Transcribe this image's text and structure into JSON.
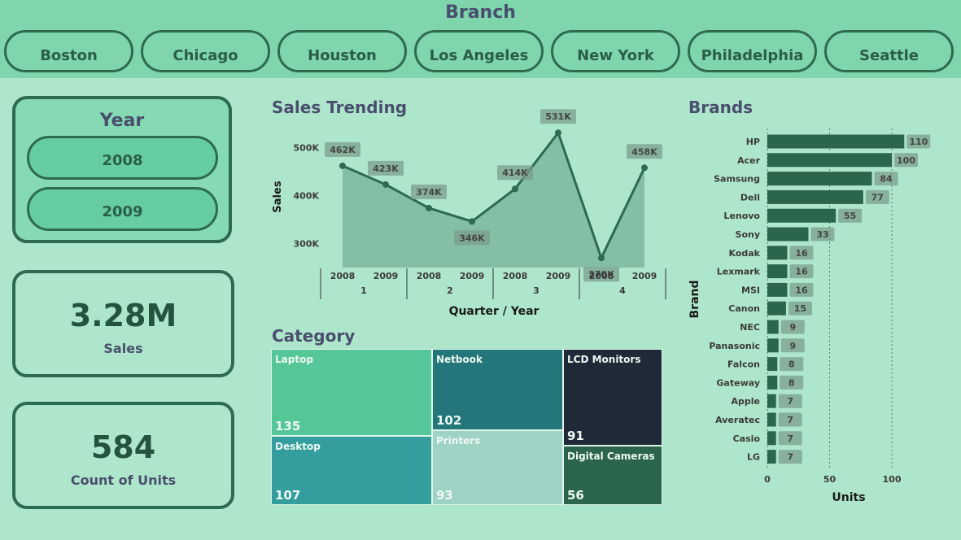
{
  "header": {
    "title": "Branch",
    "branches": [
      "Boston",
      "Chicago",
      "Houston",
      "Los Angeles",
      "New York",
      "Philadelphia",
      "Seattle"
    ]
  },
  "year_slicer": {
    "title": "Year",
    "years": [
      "2008",
      "2009"
    ]
  },
  "kpis": {
    "sales": {
      "value": "3.28M",
      "label": "Sales"
    },
    "units": {
      "value": "584",
      "label": "Count of Units"
    }
  },
  "sales_trending": {
    "title": "Sales Trending"
  },
  "category": {
    "title": "Category"
  },
  "brands": {
    "title": "Brands"
  },
  "colors": {
    "dark_green": "#2d6a50",
    "header_green": "#7fd6ad",
    "background": "#aee6cb",
    "title_purple": "#4a4e6e"
  },
  "chart_data": [
    {
      "type": "area",
      "title": "Sales Trending",
      "xlabel": "Quarter / Year",
      "ylabel": "Sales",
      "quarters": [
        "1",
        "2",
        "3",
        "4"
      ],
      "categories": [
        "2008",
        "2009",
        "2008",
        "2009",
        "2008",
        "2009",
        "2008",
        "2009"
      ],
      "values": [
        462000,
        423000,
        374000,
        346000,
        414000,
        531000,
        270000,
        458000
      ],
      "data_labels": [
        "462K",
        "423K",
        "374K",
        "346K",
        "414K",
        "531K",
        "270K",
        "458K"
      ],
      "yticks": [
        "300K",
        "400K",
        "500K"
      ],
      "ytick_values": [
        300000,
        400000,
        500000
      ],
      "ylim": [
        250000,
        550000
      ]
    },
    {
      "type": "treemap",
      "title": "Category",
      "items": [
        {
          "name": "Laptop",
          "value": 135,
          "color": "#55c698"
        },
        {
          "name": "Desktop",
          "value": 107,
          "color": "#339e9d"
        },
        {
          "name": "Netbook",
          "value": 102,
          "color": "#23767a"
        },
        {
          "name": "Printers",
          "value": 93,
          "color": "#9fd3c6"
        },
        {
          "name": "LCD Monitors",
          "value": 91,
          "color": "#1f2a38"
        },
        {
          "name": "Digital Cameras",
          "value": 56,
          "color": "#2b654c"
        }
      ]
    },
    {
      "type": "bar",
      "orientation": "horizontal",
      "title": "Brands",
      "xlabel": "Units",
      "ylabel": "Brand",
      "categories": [
        "HP",
        "Acer",
        "Samsung",
        "Dell",
        "Lenovo",
        "Sony",
        "Kodak",
        "Lexmark",
        "MSI",
        "Canon",
        "NEC",
        "Panasonic",
        "Falcon",
        "Gateway",
        "Apple",
        "Averatec",
        "Casio",
        "LG"
      ],
      "values": [
        110,
        100,
        84,
        77,
        55,
        33,
        16,
        16,
        16,
        15,
        9,
        9,
        8,
        8,
        7,
        7,
        7,
        7
      ],
      "xticks": [
        "0",
        "50",
        "100"
      ],
      "xtick_values": [
        0,
        50,
        100
      ],
      "xlim": [
        0,
        110
      ]
    }
  ]
}
